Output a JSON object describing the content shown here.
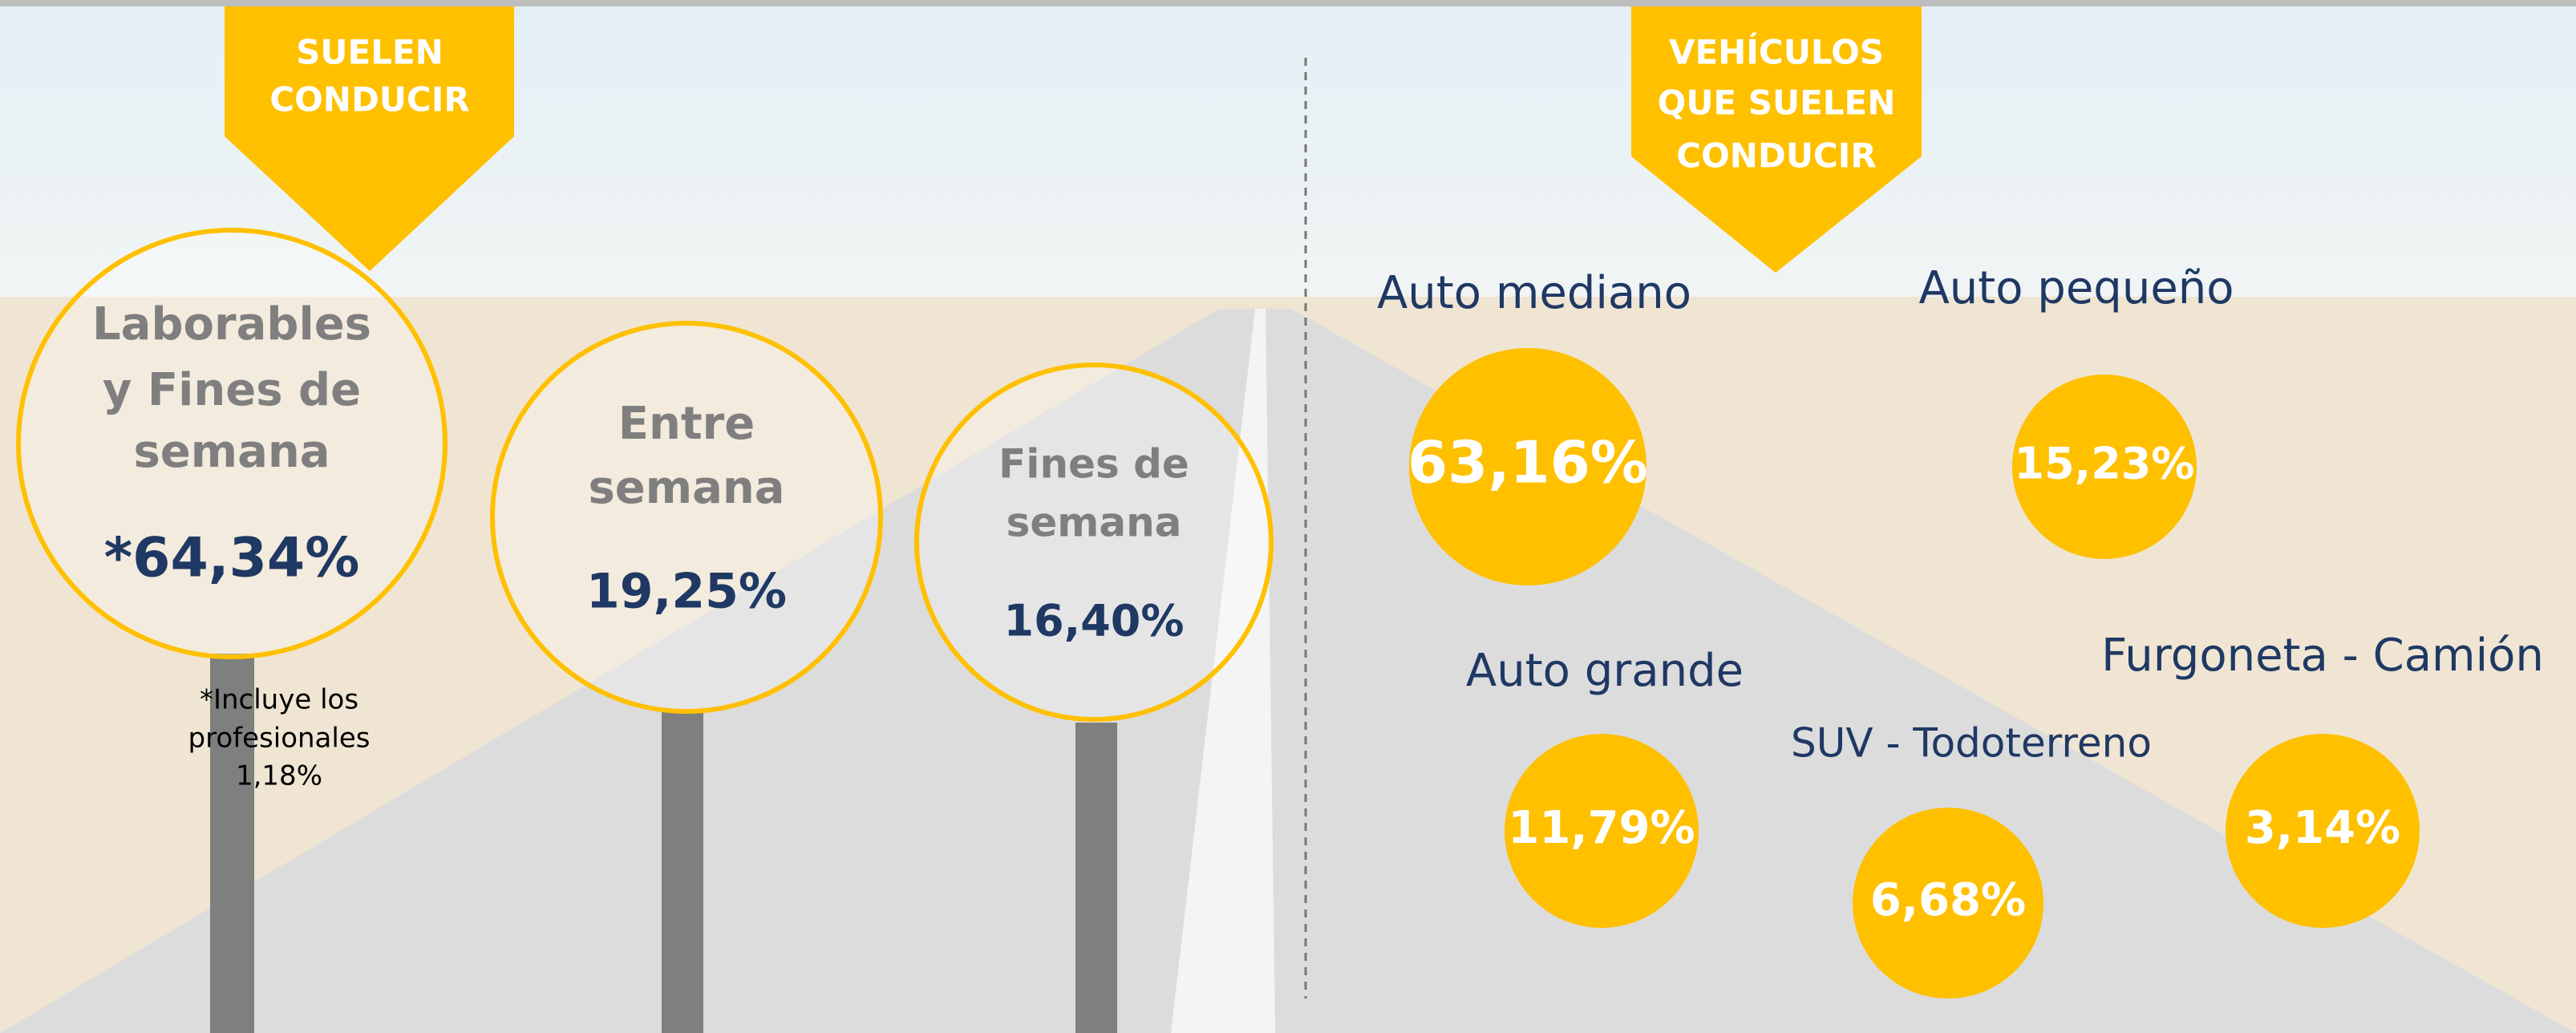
{
  "left": {
    "banner": [
      "SUELEN",
      "CONDUCIR"
    ],
    "signs": [
      {
        "label": [
          "Laborables",
          "y Fines de",
          "semana"
        ],
        "value": "*64,34%"
      },
      {
        "label": [
          "Entre",
          "semana"
        ],
        "value": "19,25%"
      },
      {
        "label": [
          "Fines de",
          "semana"
        ],
        "value": "16,40%"
      }
    ],
    "note": [
      "*Incluye los",
      "profesionales",
      "1,18%"
    ]
  },
  "right": {
    "banner": [
      "VEHÍCULOS",
      "QUE SUELEN",
      "CONDUCIR"
    ],
    "vehicles": [
      {
        "label": "Auto mediano",
        "value": "63,16%"
      },
      {
        "label": "Auto pequeño",
        "value": "15,23%"
      },
      {
        "label": "Auto grande",
        "value": "11,79%"
      },
      {
        "label": "SUV - Todoterreno",
        "value": "6,68%"
      },
      {
        "label": "Furgoneta - Camión",
        "value": "3,14%"
      }
    ]
  }
}
